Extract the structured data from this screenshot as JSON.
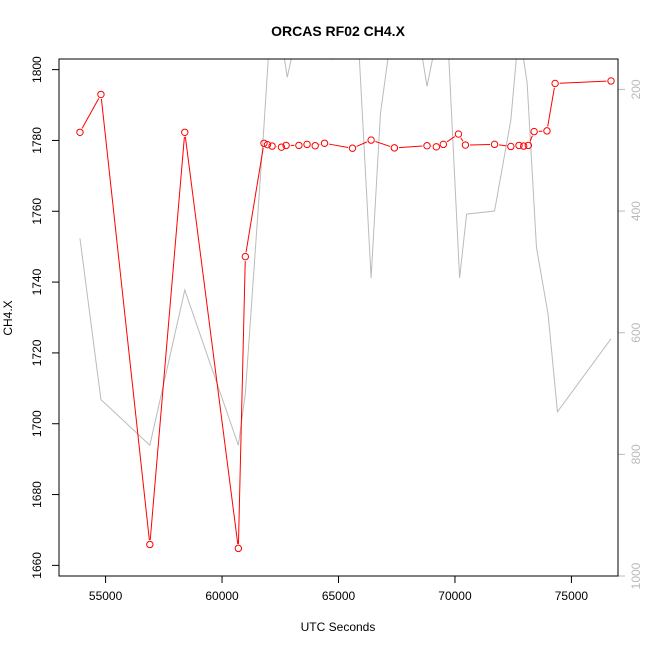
{
  "chart_data": {
    "type": "line",
    "title": "ORCAS RF02 CH4.X",
    "xlabel": "UTC Seconds",
    "ylabel": "CH4.X",
    "xlim": [
      53000,
      77000
    ],
    "ylim": [
      1657,
      1803
    ],
    "xticks": [
      55000,
      60000,
      65000,
      70000,
      75000
    ],
    "yticks": [
      1660,
      1680,
      1700,
      1720,
      1740,
      1760,
      1780,
      1800
    ],
    "y2lim": [
      1000,
      150
    ],
    "y2ticks": [
      200,
      400,
      600,
      800,
      1000
    ],
    "grid": false,
    "series": [
      {
        "color": "#ff0000",
        "axis": "left",
        "markers": "open-circle",
        "x": [
          53900,
          54800,
          56900,
          58400,
          60700,
          61000,
          61800,
          61950,
          62150,
          62550,
          62750,
          63300,
          63650,
          64000,
          64400,
          65600,
          66400,
          67400,
          68800,
          69200,
          69500,
          70150,
          70450,
          71700,
          72400,
          72750,
          72950,
          73150,
          73400,
          73950,
          74300,
          76700
        ],
        "values": [
          1782.3,
          1793,
          1665.9,
          1782.3,
          1664.8,
          1747.2,
          1779.2,
          1778.8,
          1778.4,
          1778.1,
          1778.6,
          1778.6,
          1778.9,
          1778.5,
          1779.2,
          1777.8,
          1780.1,
          1777.9,
          1778.5,
          1778.2,
          1778.9,
          1781.8,
          1778.7,
          1778.9,
          1778.3,
          1778.6,
          1778.4,
          1778.6,
          1782.5,
          1782.7,
          1796.1,
          1796.8
        ]
      },
      {
        "color": "#bbbbbb",
        "axis": "right",
        "markers": "none",
        "x": [
          53900,
          54800,
          56900,
          58400,
          60700,
          61000,
          61800,
          62000,
          62300,
          62600,
          62800,
          63200,
          63700,
          64300,
          64700,
          65300,
          65800,
          66400,
          66800,
          67300,
          67800,
          68400,
          68800,
          69300,
          69700,
          70200,
          70500,
          71700,
          72400,
          72750,
          73100,
          73500,
          74000,
          74400,
          76700
        ],
        "values": [
          445,
          710,
          785,
          530,
          785,
          700,
          260,
          140,
          100,
          130,
          180,
          110,
          100,
          100,
          150,
          100,
          80,
          510,
          240,
          100,
          80,
          100,
          195,
          100,
          120,
          510,
          405,
          400,
          250,
          100,
          190,
          460,
          570,
          730,
          610
        ]
      }
    ]
  }
}
